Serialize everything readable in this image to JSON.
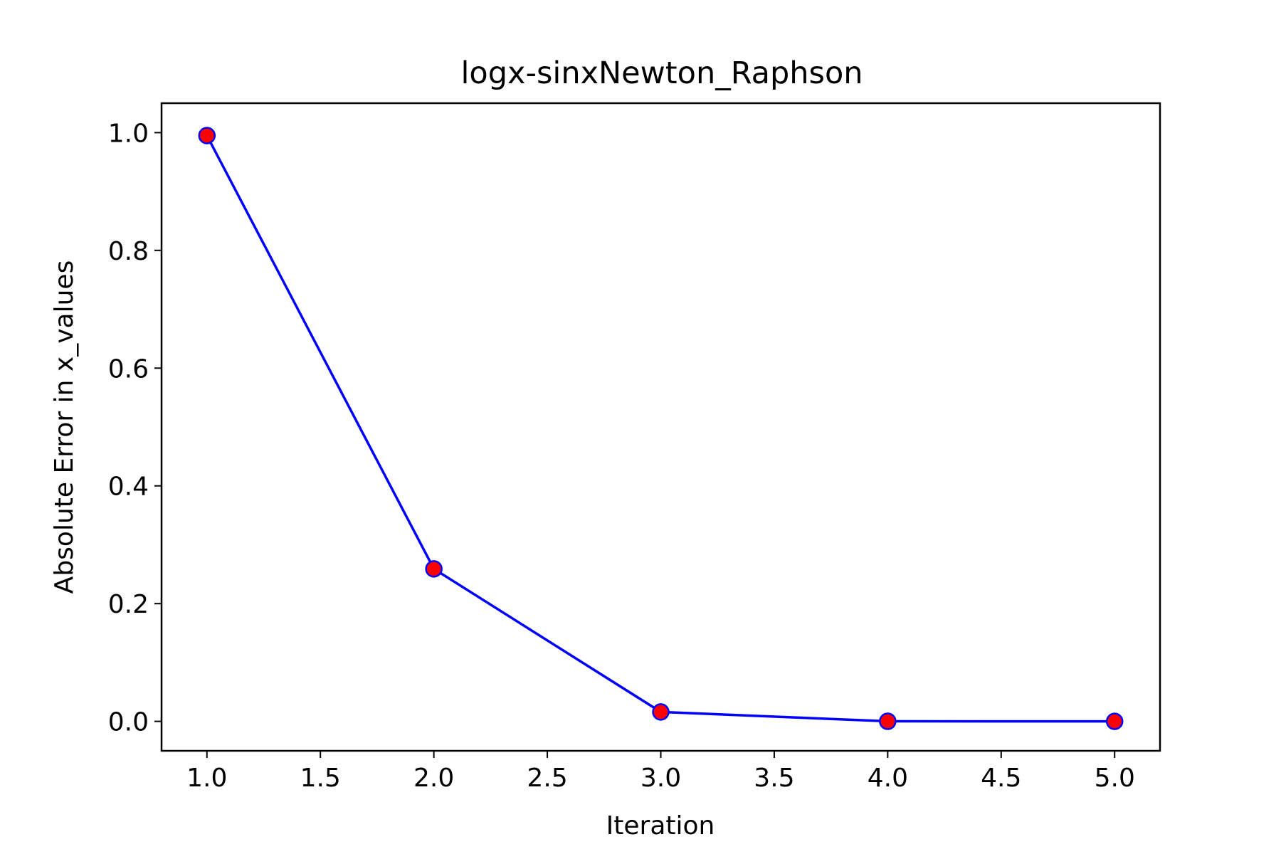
{
  "chart_data": {
    "type": "line",
    "title": "logx-sinxNewton_Raphson",
    "xlabel": "Iteration",
    "ylabel": "Absolute Error in x_values",
    "xlim": [
      0.8,
      5.2
    ],
    "ylim": [
      -0.05,
      1.05
    ],
    "xticks": [
      1.0,
      1.5,
      2.0,
      2.5,
      3.0,
      3.5,
      4.0,
      4.5,
      5.0
    ],
    "xtick_labels": [
      "1.0",
      "1.5",
      "2.0",
      "2.5",
      "3.0",
      "3.5",
      "4.0",
      "4.5",
      "5.0"
    ],
    "yticks": [
      0.0,
      0.2,
      0.4,
      0.6,
      0.8,
      1.0
    ],
    "ytick_labels": [
      "0.0",
      "0.2",
      "0.4",
      "0.6",
      "0.8",
      "1.0"
    ],
    "grid": false,
    "series": [
      {
        "x": [
          1,
          2,
          3,
          4,
          5
        ],
        "y": [
          0.995,
          0.259,
          0.016,
          0.0001,
          0.0
        ],
        "line_color": "#0000ff",
        "marker_face_color": "#ff0000",
        "marker_edge_color": "#0000ff"
      }
    ]
  }
}
